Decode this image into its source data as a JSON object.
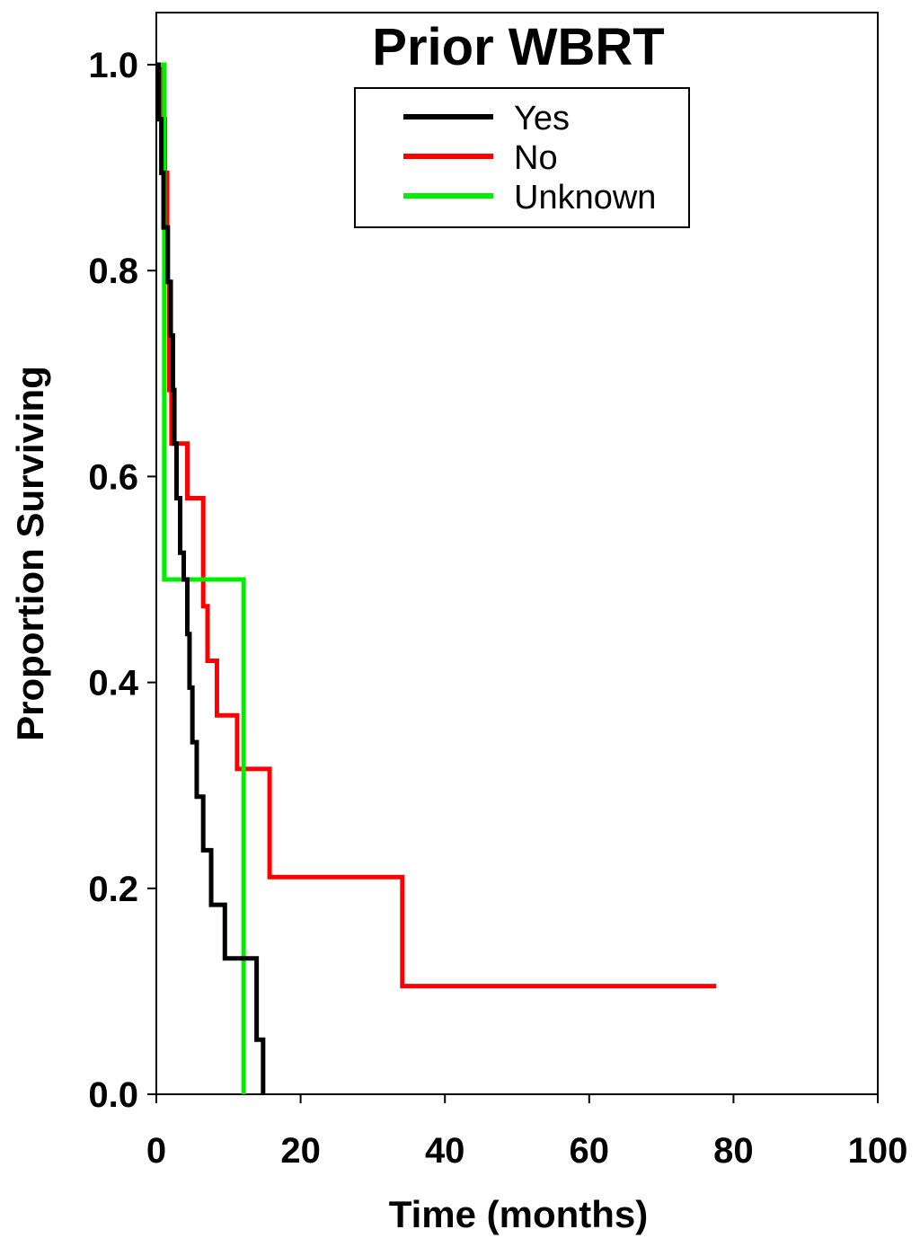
{
  "chart_data": {
    "type": "line",
    "title": "Prior WBRT",
    "xlabel": "Time (months)",
    "ylabel": "Proportion Surviving",
    "xlim": [
      0,
      100
    ],
    "ylim": [
      0,
      1.05
    ],
    "x_ticks": [
      "0",
      "20",
      "40",
      "60",
      "80",
      "100"
    ],
    "y_ticks": [
      "0.0",
      "0.2",
      "0.4",
      "0.6",
      "0.8",
      "1.0"
    ],
    "grid": false,
    "legend_position": "top-center",
    "series": [
      {
        "name": "Yes",
        "color": "#000000",
        "x": [
          0,
          0.3,
          0.7,
          1.0,
          1.6,
          2.0,
          2.3,
          2.5,
          2.8,
          3.3,
          3.8,
          4.3,
          4.6,
          5.0,
          5.6,
          6.5,
          7.6,
          9.5,
          13.9,
          14.8
        ],
        "y": [
          1.0,
          0.947,
          0.895,
          0.842,
          0.789,
          0.737,
          0.684,
          0.632,
          0.579,
          0.526,
          0.5,
          0.447,
          0.395,
          0.342,
          0.289,
          0.237,
          0.184,
          0.132,
          0.053,
          0.0
        ]
      },
      {
        "name": "No",
        "color": "#ff0000",
        "x": [
          0,
          0.9,
          1.2,
          1.5,
          1.8,
          2.1,
          4.3,
          6.5,
          7.1,
          8.4,
          11.2,
          15.7,
          34.1,
          77.6
        ],
        "y": [
          1.0,
          0.947,
          0.895,
          0.789,
          0.684,
          0.632,
          0.579,
          0.474,
          0.421,
          0.368,
          0.316,
          0.211,
          0.105,
          0.105
        ]
      },
      {
        "name": "Unknown",
        "color": "#00ee00",
        "x": [
          0,
          1.1,
          12.1
        ],
        "y": [
          1.0,
          0.5,
          0.0
        ]
      }
    ]
  }
}
